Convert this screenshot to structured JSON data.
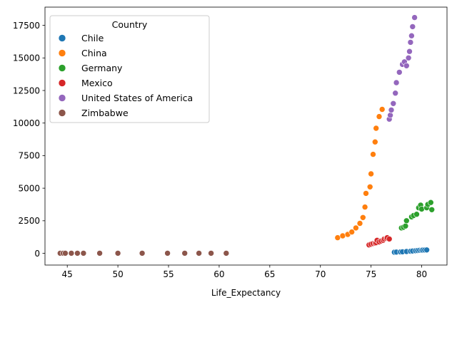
{
  "chart_data": {
    "type": "scatter",
    "xlabel": "Life_Expectancy",
    "ylabel": "",
    "xlim": [
      42.8,
      82.5
    ],
    "ylim": [
      -900,
      18900
    ],
    "xticks": [
      45,
      50,
      55,
      60,
      65,
      70,
      75,
      80
    ],
    "yticks": [
      0,
      2500,
      5000,
      7500,
      10000,
      12500,
      15000,
      17500
    ],
    "grid": false,
    "legend": {
      "title": "Country",
      "placement": "top-left"
    },
    "series": [
      {
        "name": "Chile",
        "color": "#1f77b4",
        "points": [
          [
            77.3,
            85
          ],
          [
            77.5,
            95
          ],
          [
            77.9,
            105
          ],
          [
            78.1,
            120
          ],
          [
            78.5,
            140
          ],
          [
            78.9,
            160
          ],
          [
            79.1,
            180
          ],
          [
            79.4,
            200
          ],
          [
            79.6,
            215
          ],
          [
            79.8,
            230
          ],
          [
            80.0,
            240
          ],
          [
            80.1,
            250
          ],
          [
            80.3,
            255
          ],
          [
            80.5,
            260
          ]
        ]
      },
      {
        "name": "China",
        "color": "#ff7f0e",
        "points": [
          [
            71.7,
            1200
          ],
          [
            72.2,
            1340
          ],
          [
            72.7,
            1450
          ],
          [
            73.1,
            1640
          ],
          [
            73.5,
            1950
          ],
          [
            73.9,
            2300
          ],
          [
            74.2,
            2750
          ],
          [
            74.4,
            3550
          ],
          [
            74.5,
            4600
          ],
          [
            74.9,
            5100
          ],
          [
            75.0,
            6100
          ],
          [
            75.2,
            7600
          ],
          [
            75.4,
            8550
          ],
          [
            75.5,
            9600
          ],
          [
            75.8,
            10500
          ],
          [
            76.1,
            11050
          ]
        ]
      },
      {
        "name": "Germany",
        "color": "#2ca02c",
        "points": [
          [
            78.0,
            1950
          ],
          [
            78.2,
            2000
          ],
          [
            78.4,
            2100
          ],
          [
            78.5,
            2500
          ],
          [
            79.0,
            2800
          ],
          [
            79.2,
            2900
          ],
          [
            79.5,
            3000
          ],
          [
            79.7,
            3500
          ],
          [
            79.9,
            3700
          ],
          [
            80.0,
            3400
          ],
          [
            80.5,
            3500
          ],
          [
            80.6,
            3750
          ],
          [
            80.9,
            3900
          ],
          [
            81.0,
            3350
          ]
        ]
      },
      {
        "name": "Mexico",
        "color": "#d62728",
        "points": [
          [
            74.8,
            650
          ],
          [
            75.0,
            700
          ],
          [
            75.2,
            750
          ],
          [
            75.4,
            780
          ],
          [
            75.5,
            820
          ],
          [
            75.6,
            1000
          ],
          [
            75.8,
            880
          ],
          [
            76.0,
            950
          ],
          [
            76.2,
            1000
          ],
          [
            76.3,
            1100
          ],
          [
            76.5,
            1150
          ],
          [
            76.6,
            1200
          ],
          [
            76.8,
            1100
          ]
        ]
      },
      {
        "name": "United States of America",
        "color": "#9467bd",
        "points": [
          [
            76.8,
            10300
          ],
          [
            76.9,
            10600
          ],
          [
            77.0,
            11000
          ],
          [
            77.2,
            11500
          ],
          [
            77.4,
            12300
          ],
          [
            77.5,
            13100
          ],
          [
            77.8,
            13900
          ],
          [
            78.1,
            14500
          ],
          [
            78.3,
            14700
          ],
          [
            78.5,
            14400
          ],
          [
            78.7,
            15000
          ],
          [
            78.8,
            15500
          ],
          [
            78.9,
            16200
          ],
          [
            79.0,
            16700
          ],
          [
            79.1,
            17400
          ],
          [
            79.3,
            18100
          ]
        ]
      },
      {
        "name": "Zimbabwe",
        "color": "#8c564b",
        "points": [
          [
            44.3,
            8
          ],
          [
            44.6,
            8
          ],
          [
            44.8,
            8
          ],
          [
            45.4,
            8
          ],
          [
            46.0,
            8
          ],
          [
            46.6,
            8
          ],
          [
            48.2,
            8
          ],
          [
            50.0,
            8
          ],
          [
            52.4,
            8
          ],
          [
            54.9,
            8
          ],
          [
            56.6,
            8
          ],
          [
            58.0,
            8
          ],
          [
            59.2,
            8
          ],
          [
            60.7,
            8
          ]
        ]
      }
    ]
  }
}
